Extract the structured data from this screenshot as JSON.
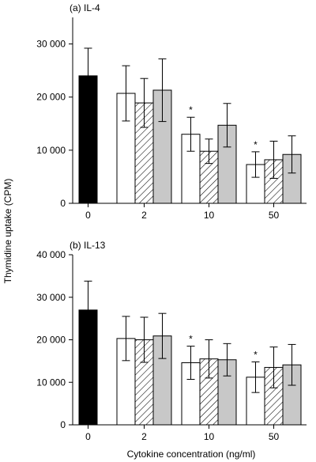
{
  "chart_data": {
    "type": "bar",
    "ylabel": "Thymidine uptake (CPM)",
    "xlabel": "Cytokine concentration (ng/ml)",
    "series_styles": [
      {
        "fill": "#000000"
      },
      {
        "fill": "#ffffff"
      },
      {
        "fill": "hatch"
      },
      {
        "fill": "#c8c8c8"
      }
    ],
    "panels": [
      {
        "title": "(a) IL-4",
        "ylim": [
          0,
          35000
        ],
        "yticks": [
          0,
          10000,
          20000,
          30000
        ],
        "yticklabels": [
          "0",
          "10 000",
          "20 000",
          "30 000"
        ],
        "categories": [
          "0",
          "2",
          "10",
          "50"
        ],
        "groups": [
          {
            "bars": [
              {
                "style": 0,
                "value": 24000,
                "err": 5200
              }
            ]
          },
          {
            "bars": [
              {
                "style": 1,
                "value": 20700,
                "err": 5200
              },
              {
                "style": 2,
                "value": 18900,
                "err": 4600
              },
              {
                "style": 3,
                "value": 21300,
                "err": 5900
              }
            ]
          },
          {
            "bars": [
              {
                "style": 1,
                "value": 13000,
                "err": 3200
              },
              {
                "style": 2,
                "value": 9800,
                "err": 2300
              },
              {
                "style": 3,
                "value": 14700,
                "err": 4100
              }
            ],
            "star": "*"
          },
          {
            "bars": [
              {
                "style": 1,
                "value": 7300,
                "err": 2400
              },
              {
                "style": 2,
                "value": 8200,
                "err": 3500
              },
              {
                "style": 3,
                "value": 9200,
                "err": 3500
              }
            ],
            "star": "*"
          }
        ]
      },
      {
        "title": "(b) IL-13",
        "ylim": [
          0,
          40000
        ],
        "yticks": [
          0,
          10000,
          20000,
          30000,
          40000
        ],
        "yticklabels": [
          "0",
          "10 000",
          "20 000",
          "30 000",
          "40 000"
        ],
        "categories": [
          "0",
          "2",
          "10",
          "50"
        ],
        "groups": [
          {
            "bars": [
              {
                "style": 0,
                "value": 27000,
                "err": 6800
              }
            ]
          },
          {
            "bars": [
              {
                "style": 1,
                "value": 20300,
                "err": 5200
              },
              {
                "style": 2,
                "value": 20000,
                "err": 5300
              },
              {
                "style": 3,
                "value": 20900,
                "err": 5300
              }
            ]
          },
          {
            "bars": [
              {
                "style": 1,
                "value": 14600,
                "err": 3900
              },
              {
                "style": 2,
                "value": 15500,
                "err": 4500
              },
              {
                "style": 3,
                "value": 15300,
                "err": 3800
              }
            ],
            "star": "*"
          },
          {
            "bars": [
              {
                "style": 1,
                "value": 11200,
                "err": 3600
              },
              {
                "style": 2,
                "value": 13500,
                "err": 4800
              },
              {
                "style": 3,
                "value": 14100,
                "err": 4800
              }
            ],
            "star": "*"
          }
        ]
      }
    ]
  }
}
